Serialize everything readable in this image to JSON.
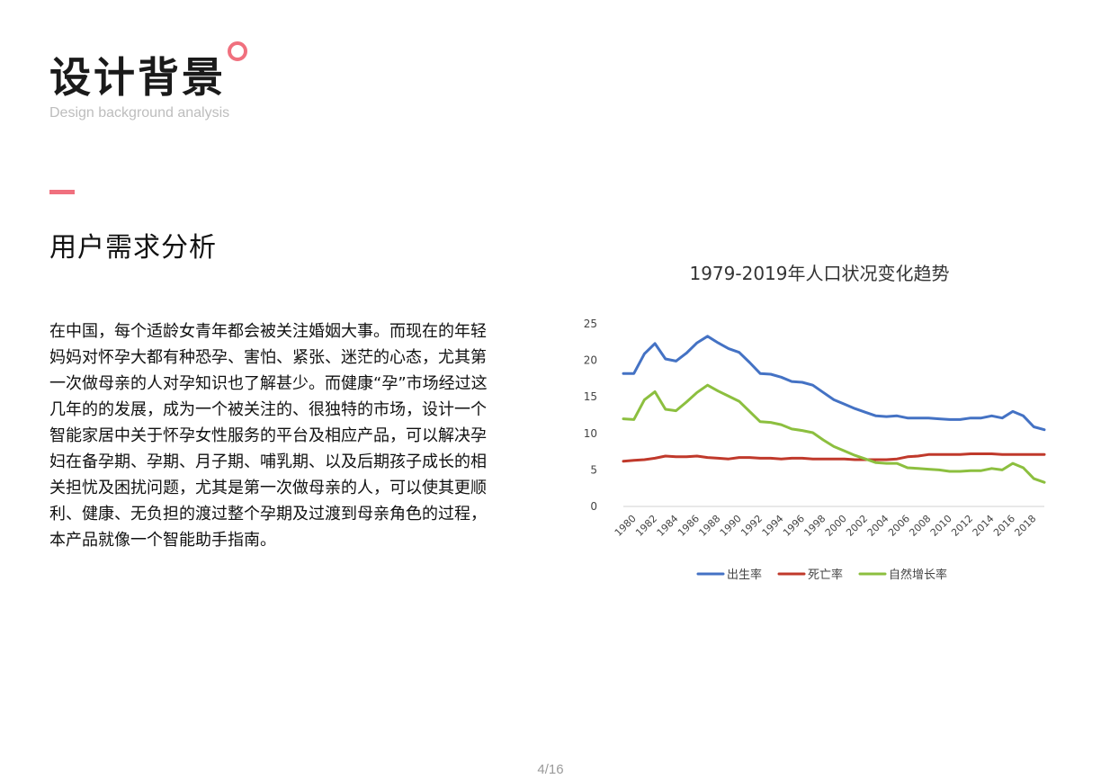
{
  "header": {
    "title": "设计背景",
    "subtitle": "Design background analysis"
  },
  "section": {
    "heading": "用户需求分析",
    "paragraph": "在中国，每个适龄女青年都会被关注婚姻大事。而现在的年轻妈妈对怀孕大都有种恐孕、害怕、紧张、迷茫的心态，尤其第一次做母亲的人对孕知识也了解甚少。而健康“孕”市场经过这几年的的发展，成为一个被关注的、很独特的市场，设计一个智能家居中关于怀孕女性服务的平台及相应产品，可以解决孕妇在备孕期、孕期、月子期、哺乳期、以及后期孩子成长的相关担忧及困扰问题，尤其是第一次做母亲的人，可以使其更顺利、健康、无负担的渡过整个孕期及过渡到母亲角色的过程，本产品就像一个智能助手指南。"
  },
  "colors": {
    "accent": "#f0707e",
    "birth": "#4472c4",
    "death": "#c0392b",
    "growth": "#8cbf3f"
  },
  "chart_data": {
    "type": "line",
    "title": "1979-2019年人口状况变化趋势",
    "x": [
      1979,
      1980,
      1981,
      1982,
      1983,
      1984,
      1985,
      1986,
      1987,
      1988,
      1989,
      1990,
      1991,
      1992,
      1993,
      1994,
      1995,
      1996,
      1997,
      1998,
      1999,
      2000,
      2001,
      2002,
      2003,
      2004,
      2005,
      2006,
      2007,
      2008,
      2009,
      2010,
      2011,
      2012,
      2013,
      2014,
      2015,
      2016,
      2017,
      2018,
      2019
    ],
    "x_tick_labels": [
      "1980",
      "1982",
      "1984",
      "1986",
      "1988",
      "1990",
      "1992",
      "1994",
      "1996",
      "1998",
      "2000",
      "2002",
      "2004",
      "2006",
      "2008",
      "2010",
      "2012",
      "2014",
      "2016",
      "2018"
    ],
    "ylim": [
      0,
      25
    ],
    "y_ticks": [
      0,
      5,
      10,
      15,
      20,
      25
    ],
    "grid": false,
    "legend_position": "bottom",
    "series": [
      {
        "name": "出生率",
        "color": "#4472c4",
        "values": [
          18.2,
          18.2,
          20.9,
          22.3,
          20.2,
          19.9,
          21.0,
          22.4,
          23.3,
          22.4,
          21.6,
          21.1,
          19.7,
          18.2,
          18.1,
          17.7,
          17.1,
          17.0,
          16.6,
          15.6,
          14.6,
          14.0,
          13.4,
          12.9,
          12.4,
          12.3,
          12.4,
          12.1,
          12.1,
          12.1,
          12.0,
          11.9,
          11.9,
          12.1,
          12.1,
          12.4,
          12.1,
          13.0,
          12.4,
          10.9,
          10.5
        ]
      },
      {
        "name": "死亡率",
        "color": "#c0392b",
        "values": [
          6.2,
          6.3,
          6.4,
          6.6,
          6.9,
          6.8,
          6.8,
          6.9,
          6.7,
          6.6,
          6.5,
          6.7,
          6.7,
          6.6,
          6.6,
          6.5,
          6.6,
          6.6,
          6.5,
          6.5,
          6.5,
          6.5,
          6.4,
          6.4,
          6.4,
          6.4,
          6.5,
          6.8,
          6.9,
          7.1,
          7.1,
          7.1,
          7.1,
          7.2,
          7.2,
          7.2,
          7.1,
          7.1,
          7.1,
          7.1,
          7.1
        ]
      },
      {
        "name": "自然增长率",
        "color": "#8cbf3f",
        "values": [
          12.0,
          11.9,
          14.6,
          15.7,
          13.3,
          13.1,
          14.3,
          15.6,
          16.6,
          15.8,
          15.1,
          14.4,
          13.0,
          11.6,
          11.5,
          11.2,
          10.6,
          10.4,
          10.1,
          9.1,
          8.2,
          7.6,
          7.0,
          6.5,
          6.0,
          5.9,
          5.9,
          5.3,
          5.2,
          5.1,
          5.0,
          4.8,
          4.8,
          4.9,
          4.9,
          5.2,
          5.0,
          5.9,
          5.3,
          3.8,
          3.3
        ]
      }
    ]
  },
  "pager": {
    "text": "4/16"
  }
}
